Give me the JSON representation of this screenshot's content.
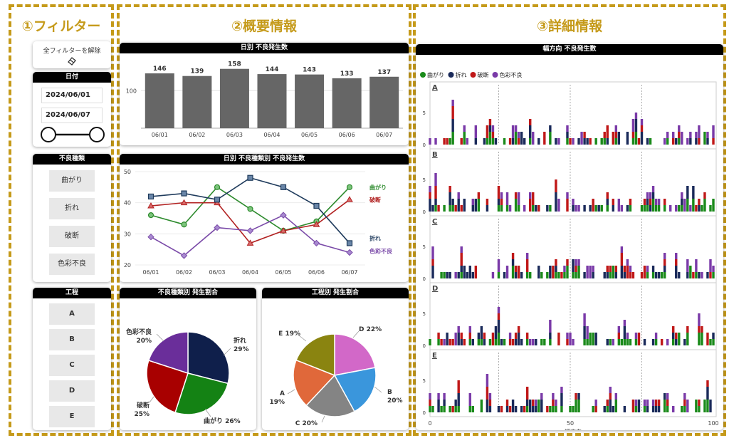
{
  "sections": {
    "filter_title": "①フィルター",
    "overview_title": "②概要情報",
    "detail_title": "③詳細情報"
  },
  "filter": {
    "clear_label": "全フィルターを解除",
    "date_header": "日付",
    "date_from": "2024/06/01",
    "date_to": "2024/06/07",
    "defect_header": "不良種類",
    "defect_types": [
      "曲がり",
      "折れ",
      "破断",
      "色彩不良"
    ],
    "process_header": "工程",
    "processes": [
      "A",
      "B",
      "C",
      "D",
      "E"
    ]
  },
  "colors": {
    "accent": "#c59a1a",
    "bar": "#666666",
    "bend": "#1a8a1a",
    "break": "#1a2a5a",
    "rupture": "#c01818",
    "color_defect": "#7a3aa8"
  },
  "chart_data": [
    {
      "id": "daily",
      "type": "bar",
      "title": "日別 不良発生数",
      "categories": [
        "06/01",
        "06/02",
        "06/03",
        "06/04",
        "06/05",
        "06/06",
        "06/07"
      ],
      "values": [
        146,
        139,
        158,
        144,
        143,
        133,
        137
      ],
      "ytick_labels": [
        "100"
      ],
      "ylim": [
        0,
        165
      ]
    },
    {
      "id": "daily_by_type",
      "type": "line",
      "title": "日別 不良種類別 不良発生数",
      "categories": [
        "06/01",
        "06/02",
        "06/03",
        "06/04",
        "06/05",
        "06/06",
        "06/07"
      ],
      "yticks": [
        20,
        30,
        40,
        50
      ],
      "ylim": [
        20,
        50
      ],
      "series": [
        {
          "name": "曲がり",
          "color": "#2e8b2e",
          "marker": "circle",
          "values": [
            36,
            33,
            45,
            38,
            31,
            34,
            45
          ]
        },
        {
          "name": "破断",
          "color": "#b22222",
          "marker": "triangle",
          "values": [
            39,
            40,
            40,
            27,
            31,
            33,
            41
          ]
        },
        {
          "name": "折れ",
          "color": "#1f3b5c",
          "marker": "square",
          "values": [
            42,
            43,
            41,
            48,
            45,
            39,
            27
          ]
        },
        {
          "name": "色彩不良",
          "color": "#7a4aa8",
          "marker": "diamond",
          "values": [
            29,
            23,
            32,
            31,
            36,
            27,
            24
          ]
        }
      ]
    },
    {
      "id": "type_share",
      "type": "pie",
      "title": "不良種類別 発生割合",
      "slices": [
        {
          "label": "折れ",
          "pct": "29%",
          "value": 29,
          "color": "#0f1f4b"
        },
        {
          "label": "曲がり",
          "pct": "26%",
          "value": 26,
          "color": "#148214"
        },
        {
          "label": "破断",
          "pct": "25%",
          "value": 25,
          "color": "#a80000"
        },
        {
          "label": "色彩不良",
          "pct": "20%",
          "value": 20,
          "color": "#6a2e9a"
        }
      ]
    },
    {
      "id": "process_share",
      "type": "pie",
      "title": "工程別 発生割合",
      "slices": [
        {
          "label": "D",
          "pct": "22%",
          "value": 22,
          "color": "#d268c8"
        },
        {
          "label": "B",
          "pct": "20%",
          "value": 20,
          "color": "#3a96dc"
        },
        {
          "label": "C",
          "pct": "20%",
          "value": 20,
          "color": "#848484"
        },
        {
          "label": "A",
          "pct": "19%",
          "value": 19,
          "color": "#e0683a"
        },
        {
          "label": "E",
          "pct": "19%",
          "value": 19,
          "color": "#8a8410"
        }
      ]
    },
    {
      "id": "width_direction",
      "type": "bar",
      "stacked": true,
      "title": "幅方向 不良発生数",
      "legend": [
        "曲がり",
        "折れ",
        "破断",
        "色彩不良"
      ],
      "legend_position": "top-left",
      "facets": [
        "A",
        "B",
        "C",
        "D",
        "E"
      ],
      "xlabel": "幅方向",
      "xticks": [
        0,
        50,
        100
      ],
      "yticks": [
        0,
        5
      ],
      "ylim": [
        0,
        8
      ],
      "x_range": [
        1,
        100
      ],
      "reference_lines": [
        25,
        50,
        75
      ],
      "note": "per-position stacked counts (0–8) for 100 width positions per process"
    }
  ]
}
